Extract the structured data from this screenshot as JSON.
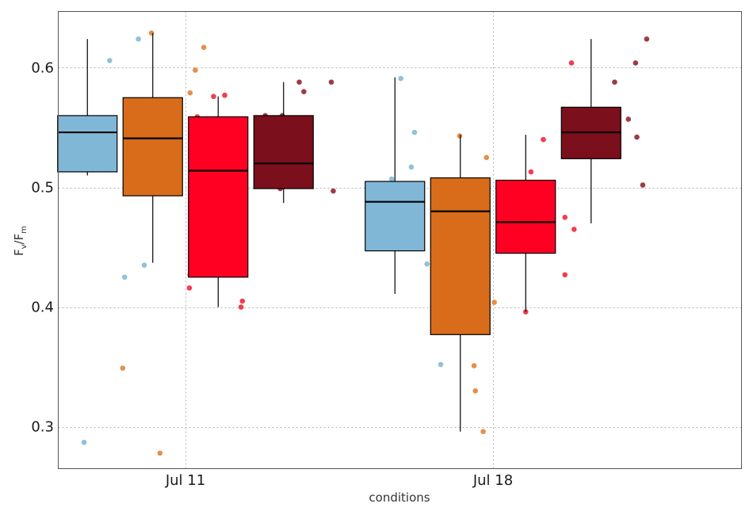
{
  "chart_data": {
    "type": "box",
    "xlabel": "conditions",
    "ylabel_main": "F",
    "ylabel_sub1": "v",
    "ylabel_sep": "/F",
    "ylabel_sub2": "m",
    "ylim": [
      0.265,
      0.647
    ],
    "yticks": [
      0.3,
      0.4,
      0.5,
      0.6
    ],
    "ytick_labels": [
      "0.3",
      "0.4",
      "0.5",
      "0.6"
    ],
    "grid": true,
    "categories": [
      "Jul 11",
      "Jul 18"
    ],
    "series": [
      {
        "color": "#80b7d6",
        "point_color": "#7fb6d4",
        "boxes": [
          {
            "min": 0.51,
            "q1": 0.513,
            "median": 0.546,
            "q3": 0.56,
            "max": 0.624
          },
          {
            "min": 0.411,
            "q1": 0.447,
            "median": 0.488,
            "q3": 0.505,
            "max": 0.592
          }
        ]
      },
      {
        "color": "#d86c1a",
        "point_color": "#e07b2a",
        "boxes": [
          {
            "min": 0.437,
            "q1": 0.493,
            "median": 0.541,
            "q3": 0.575,
            "max": 0.629
          },
          {
            "min": 0.296,
            "q1": 0.377,
            "median": 0.48,
            "q3": 0.508,
            "max": 0.544
          }
        ]
      },
      {
        "color": "#ff0023",
        "point_color": "#ee1c30",
        "boxes": [
          {
            "min": 0.4,
            "q1": 0.425,
            "median": 0.514,
            "q3": 0.559,
            "max": 0.576
          },
          {
            "min": 0.396,
            "q1": 0.445,
            "median": 0.471,
            "q3": 0.506,
            "max": 0.544
          }
        ]
      },
      {
        "color": "#7b0f1c",
        "point_color": "#8a1a28",
        "boxes": [
          {
            "min": 0.487,
            "q1": 0.499,
            "median": 0.52,
            "q3": 0.56,
            "max": 0.588
          },
          {
            "min": 0.47,
            "q1": 0.524,
            "median": 0.546,
            "q3": 0.567,
            "max": 0.624
          }
        ]
      }
    ],
    "points": [
      {
        "series": 0,
        "category": 0,
        "dx": -0.42,
        "y": 0.553
      },
      {
        "series": 0,
        "category": 0,
        "dx": -0.05,
        "y": 0.287
      },
      {
        "series": 0,
        "category": 0,
        "dx": 0.34,
        "y": 0.606
      },
      {
        "series": 0,
        "category": 0,
        "dx": 0.57,
        "y": 0.425
      },
      {
        "series": 0,
        "category": 0,
        "dx": 0.78,
        "y": 0.624
      },
      {
        "series": 0,
        "category": 0,
        "dx": 0.87,
        "y": 0.435
      },
      {
        "series": 0,
        "category": 1,
        "dx": -0.05,
        "y": 0.507
      },
      {
        "series": 0,
        "category": 1,
        "dx": 0.09,
        "y": 0.591
      },
      {
        "series": 0,
        "category": 1,
        "dx": 0.25,
        "y": 0.517
      },
      {
        "series": 0,
        "category": 1,
        "dx": 0.3,
        "y": 0.546
      },
      {
        "series": 0,
        "category": 1,
        "dx": 0.49,
        "y": 0.436
      },
      {
        "series": 0,
        "category": 1,
        "dx": 0.7,
        "y": 0.352
      },
      {
        "series": 0,
        "category": 1,
        "dx": 0.73,
        "y": 0.441
      },
      {
        "series": 0,
        "category": 1,
        "dx": 0.81,
        "y": 0.411
      },
      {
        "series": 1,
        "category": 0,
        "dx": -0.46,
        "y": 0.349
      },
      {
        "series": 1,
        "category": 0,
        "dx": -0.29,
        "y": 0.563
      },
      {
        "series": 1,
        "category": 0,
        "dx": -0.02,
        "y": 0.629
      },
      {
        "series": 1,
        "category": 0,
        "dx": 0.11,
        "y": 0.278
      },
      {
        "series": 1,
        "category": 0,
        "dx": 0.57,
        "y": 0.579
      },
      {
        "series": 1,
        "category": 0,
        "dx": 0.58,
        "y": 0.437
      },
      {
        "series": 1,
        "category": 0,
        "dx": 0.65,
        "y": 0.598
      },
      {
        "series": 1,
        "category": 0,
        "dx": 0.78,
        "y": 0.617
      },
      {
        "series": 1,
        "category": 1,
        "dx": -0.01,
        "y": 0.543
      },
      {
        "series": 1,
        "category": 1,
        "dx": 0.08,
        "y": 0.424
      },
      {
        "series": 1,
        "category": 1,
        "dx": 0.21,
        "y": 0.351
      },
      {
        "series": 1,
        "category": 1,
        "dx": 0.23,
        "y": 0.33
      },
      {
        "series": 1,
        "category": 1,
        "dx": 0.35,
        "y": 0.296
      },
      {
        "series": 1,
        "category": 1,
        "dx": 0.4,
        "y": 0.525
      },
      {
        "series": 1,
        "category": 1,
        "dx": 0.52,
        "y": 0.404
      },
      {
        "series": 1,
        "category": 1,
        "dx": 0.72,
        "y": 0.481
      },
      {
        "series": 2,
        "category": 0,
        "dx": -0.43,
        "y": 0.427
      },
      {
        "series": 2,
        "category": 0,
        "dx": -0.44,
        "y": 0.416
      },
      {
        "series": 2,
        "category": 0,
        "dx": -0.32,
        "y": 0.559
      },
      {
        "series": 2,
        "category": 0,
        "dx": -0.07,
        "y": 0.576
      },
      {
        "series": 2,
        "category": 0,
        "dx": 0.0,
        "y": 0.471
      },
      {
        "series": 2,
        "category": 0,
        "dx": 0.1,
        "y": 0.577
      },
      {
        "series": 2,
        "category": 0,
        "dx": 0.35,
        "y": 0.4
      },
      {
        "series": 2,
        "category": 0,
        "dx": 0.37,
        "y": 0.405
      },
      {
        "series": 2,
        "category": 1,
        "dx": 0.0,
        "y": 0.396
      },
      {
        "series": 2,
        "category": 1,
        "dx": 0.08,
        "y": 0.513
      },
      {
        "series": 2,
        "category": 1,
        "dx": 0.27,
        "y": 0.54
      },
      {
        "series": 2,
        "category": 1,
        "dx": 0.6,
        "y": 0.475
      },
      {
        "series": 2,
        "category": 1,
        "dx": 0.6,
        "y": 0.427
      },
      {
        "series": 2,
        "category": 1,
        "dx": 0.7,
        "y": 0.604
      },
      {
        "series": 2,
        "category": 1,
        "dx": 0.74,
        "y": 0.465
      },
      {
        "series": 3,
        "category": 0,
        "dx": -0.28,
        "y": 0.56
      },
      {
        "series": 3,
        "category": 0,
        "dx": -0.05,
        "y": 0.499
      },
      {
        "series": 3,
        "category": 0,
        "dx": -0.02,
        "y": 0.56
      },
      {
        "series": 3,
        "category": 0,
        "dx": 0.08,
        "y": 0.503
      },
      {
        "series": 3,
        "category": 0,
        "dx": 0.24,
        "y": 0.588
      },
      {
        "series": 3,
        "category": 0,
        "dx": 0.31,
        "y": 0.58
      },
      {
        "series": 3,
        "category": 0,
        "dx": 0.73,
        "y": 0.588
      },
      {
        "series": 3,
        "category": 0,
        "dx": 0.76,
        "y": 0.497
      },
      {
        "series": 3,
        "category": 1,
        "dx": -0.08,
        "y": 0.55
      },
      {
        "series": 3,
        "category": 1,
        "dx": 0.29,
        "y": 0.542
      },
      {
        "series": 3,
        "category": 1,
        "dx": 0.31,
        "y": 0.532
      },
      {
        "series": 3,
        "category": 1,
        "dx": 0.36,
        "y": 0.588
      },
      {
        "series": 3,
        "category": 1,
        "dx": 0.38,
        "y": 0.539
      },
      {
        "series": 3,
        "category": 1,
        "dx": 0.57,
        "y": 0.557
      },
      {
        "series": 3,
        "category": 1,
        "dx": 0.68,
        "y": 0.604
      },
      {
        "series": 3,
        "category": 1,
        "dx": 0.7,
        "y": 0.542
      },
      {
        "series": 3,
        "category": 1,
        "dx": 0.79,
        "y": 0.502
      },
      {
        "series": 3,
        "category": 1,
        "dx": 0.85,
        "y": 0.624
      }
    ]
  }
}
